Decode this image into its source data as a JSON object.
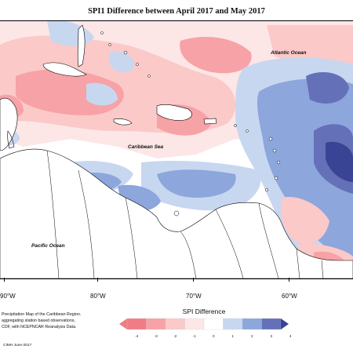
{
  "title": "SPI1 Difference between April 2017 and May 2017",
  "map": {
    "ocean_labels": {
      "atlantic": "Atlantic Ocean",
      "caribbean": "Caribbean Sea",
      "pacific": "Pacific Ocean"
    },
    "longitude_labels": [
      "90°W",
      "80°W",
      "70°W",
      "60°W"
    ]
  },
  "notes": [
    "Precipitation Map of the Caribbean Region.",
    "aggregating station based observations,",
    "CDF, with NCEPNCAR Reanalysis Data."
  ],
  "credit": "CIMH June-2017",
  "legend": {
    "title": "SPI Difference",
    "ticks": [
      "-4",
      "-3",
      "-2",
      "-1",
      "0",
      "1",
      "2",
      "3",
      "4"
    ],
    "colors": [
      "#f07c86",
      "#f7a2a6",
      "#fbc9c8",
      "#fde6e6",
      "#ffffff",
      "#c8d7f0",
      "#8da6dc",
      "#6470b8",
      "#3a4494"
    ]
  }
}
